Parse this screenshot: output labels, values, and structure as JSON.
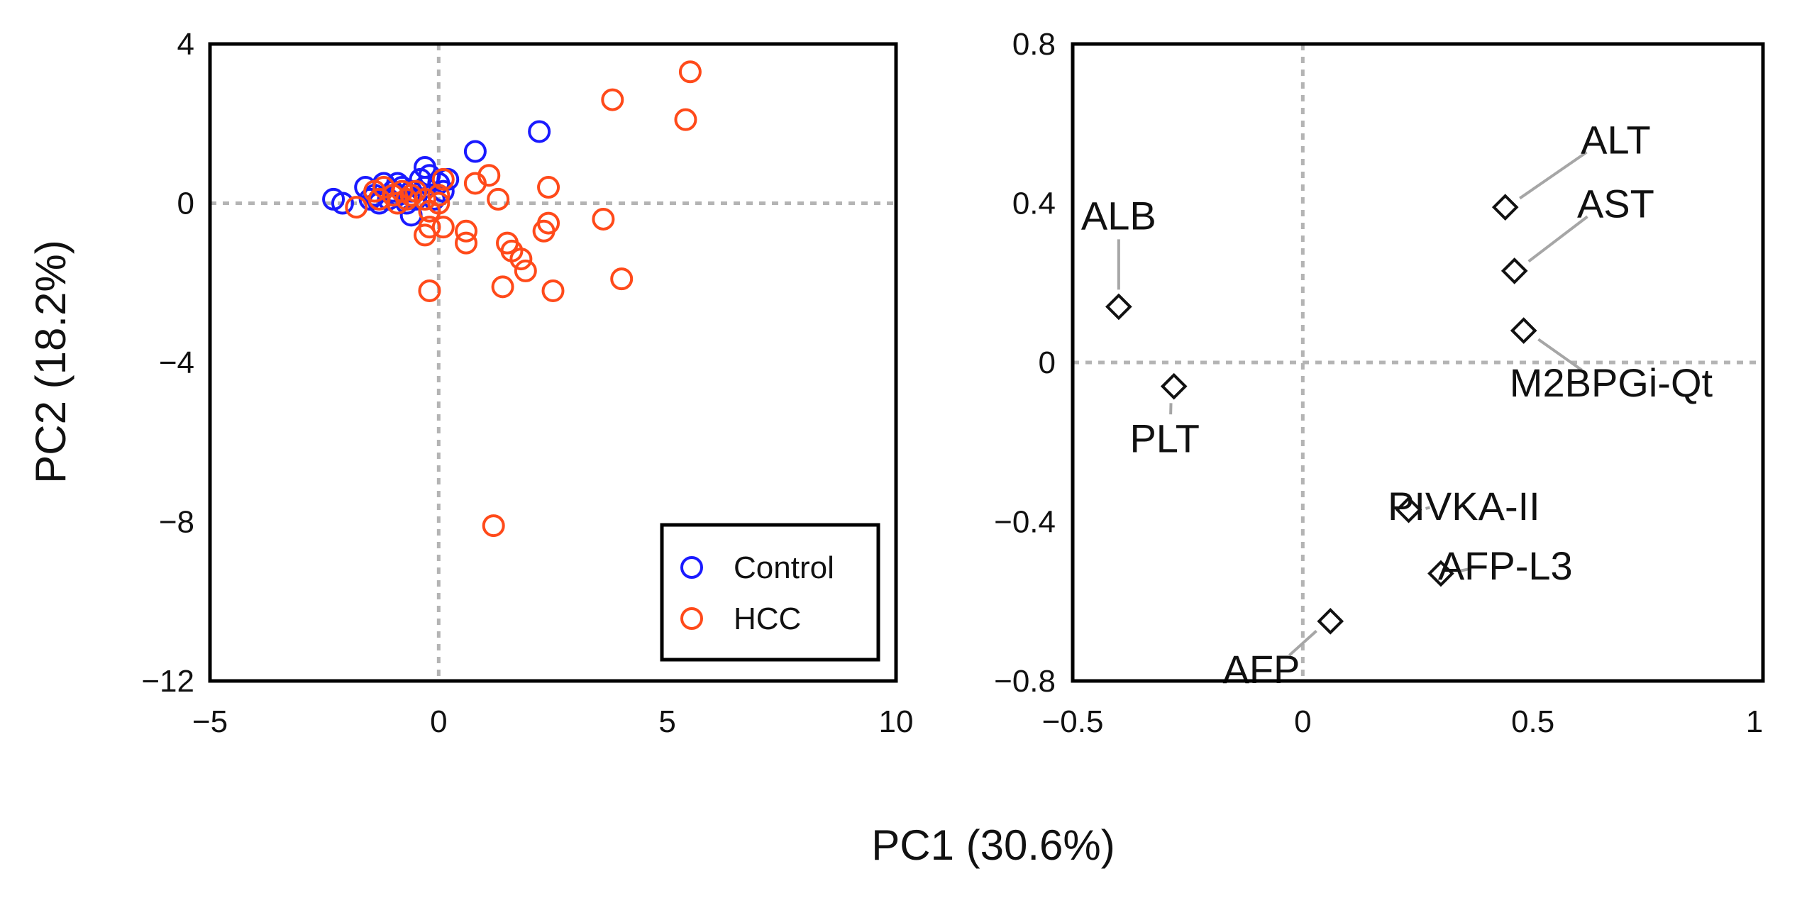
{
  "chart_data": [
    {
      "type": "scatter",
      "panel": "score-plot",
      "xlabel": "PC1 (30.6%)",
      "ylabel": "PC2 (18.2%)",
      "xlim": [
        -5,
        10
      ],
      "ylim": [
        -12,
        4
      ],
      "xticks": [
        -5,
        0,
        5,
        10
      ],
      "xtick_labels": [
        "−5",
        "0",
        "5",
        "10"
      ],
      "yticks": [
        4,
        0,
        -4,
        -8,
        -12
      ],
      "ytick_labels": [
        "4",
        "0",
        "−4",
        "−8",
        "−12"
      ],
      "reference_lines": {
        "x": 0,
        "y": 0
      },
      "legend": {
        "position": "bottom-right",
        "entries": [
          "Control",
          "HCC"
        ]
      },
      "series": [
        {
          "name": "Control",
          "color": "#1a1aff",
          "marker": "open-circle",
          "points": [
            [
              -2.3,
              0.1
            ],
            [
              -2.1,
              0.0
            ],
            [
              -1.6,
              0.4
            ],
            [
              -1.5,
              0.1
            ],
            [
              -1.4,
              0.2
            ],
            [
              -1.3,
              0.0
            ],
            [
              -1.2,
              0.5
            ],
            [
              -1.1,
              0.1
            ],
            [
              -1.0,
              0.3
            ],
            [
              -0.9,
              0.2
            ],
            [
              -0.8,
              0.4
            ],
            [
              -0.7,
              0.0
            ],
            [
              -0.6,
              0.3
            ],
            [
              -0.6,
              -0.3
            ],
            [
              -0.5,
              0.1
            ],
            [
              -0.4,
              0.6
            ],
            [
              -0.3,
              0.9
            ],
            [
              -0.3,
              0.4
            ],
            [
              -0.2,
              0.7
            ],
            [
              -0.1,
              0.1
            ],
            [
              0.0,
              0.5
            ],
            [
              0.1,
              0.3
            ],
            [
              0.2,
              0.6
            ],
            [
              -0.9,
              0.5
            ],
            [
              0.8,
              1.3
            ],
            [
              2.2,
              1.8
            ]
          ]
        },
        {
          "name": "HCC",
          "color": "#ff4a1a",
          "marker": "open-circle",
          "points": [
            [
              -1.8,
              -0.1
            ],
            [
              -1.4,
              0.3
            ],
            [
              -1.3,
              0.1
            ],
            [
              -1.2,
              0.4
            ],
            [
              -1.0,
              0.2
            ],
            [
              -0.9,
              0.0
            ],
            [
              -0.8,
              0.3
            ],
            [
              -0.7,
              0.1
            ],
            [
              -0.6,
              0.2
            ],
            [
              -0.5,
              0.3
            ],
            [
              -0.3,
              0.1
            ],
            [
              -0.2,
              -0.2
            ],
            [
              0.0,
              0.2
            ],
            [
              0.1,
              0.6
            ],
            [
              0.0,
              0.0
            ],
            [
              -0.3,
              -0.8
            ],
            [
              -0.2,
              -0.6
            ],
            [
              0.1,
              -0.6
            ],
            [
              0.6,
              -0.7
            ],
            [
              0.6,
              -1.0
            ],
            [
              0.8,
              0.5
            ],
            [
              1.1,
              0.7
            ],
            [
              1.3,
              0.1
            ],
            [
              1.5,
              -1.0
            ],
            [
              1.6,
              -1.2
            ],
            [
              1.8,
              -1.4
            ],
            [
              1.9,
              -1.7
            ],
            [
              1.4,
              -2.1
            ],
            [
              2.3,
              -0.7
            ],
            [
              2.4,
              -0.5
            ],
            [
              2.5,
              -2.2
            ],
            [
              -0.2,
              -2.2
            ],
            [
              2.4,
              0.4
            ],
            [
              3.6,
              -0.4
            ],
            [
              4.0,
              -1.9
            ],
            [
              3.8,
              2.6
            ],
            [
              5.4,
              2.1
            ],
            [
              5.5,
              3.3
            ],
            [
              1.2,
              -8.1
            ]
          ]
        }
      ]
    },
    {
      "type": "scatter",
      "panel": "loading-plot",
      "xlim": [
        -0.5,
        1
      ],
      "ylim": [
        -0.8,
        0.8
      ],
      "xticks": [
        -0.5,
        0,
        0.5,
        1
      ],
      "xtick_labels": [
        "−0.5",
        "0",
        "0.5",
        "1"
      ],
      "yticks": [
        0.8,
        0.4,
        0,
        -0.4,
        -0.8
      ],
      "ytick_labels": [
        "0.8",
        "0.4",
        "0",
        "−0.4",
        "−0.8"
      ],
      "reference_lines": {
        "x": 0,
        "y": 0
      },
      "marker": "open-diamond",
      "points": [
        {
          "label": "ALT",
          "x": 0.44,
          "y": 0.39,
          "label_at": [
            0.68,
            0.56
          ]
        },
        {
          "label": "AST",
          "x": 0.46,
          "y": 0.23,
          "label_at": [
            0.68,
            0.4
          ]
        },
        {
          "label": "M2BPGi-Qt",
          "x": 0.48,
          "y": 0.08,
          "label_at": [
            0.67,
            -0.05
          ]
        },
        {
          "label": "ALB",
          "x": -0.4,
          "y": 0.14,
          "label_at": [
            -0.4,
            0.37
          ]
        },
        {
          "label": "PLT",
          "x": -0.28,
          "y": -0.06,
          "label_at": [
            -0.3,
            -0.19
          ]
        },
        {
          "label": "PIVKA-II",
          "x": 0.23,
          "y": -0.37,
          "label_at": [
            0.35,
            -0.36
          ]
        },
        {
          "label": "AFP-L3",
          "x": 0.3,
          "y": -0.53,
          "label_at": [
            0.44,
            -0.51
          ]
        },
        {
          "label": "AFP",
          "x": 0.06,
          "y": -0.65,
          "label_at": [
            -0.09,
            -0.77
          ]
        }
      ]
    }
  ],
  "shared_xlabel": "PC1 (30.6%)"
}
